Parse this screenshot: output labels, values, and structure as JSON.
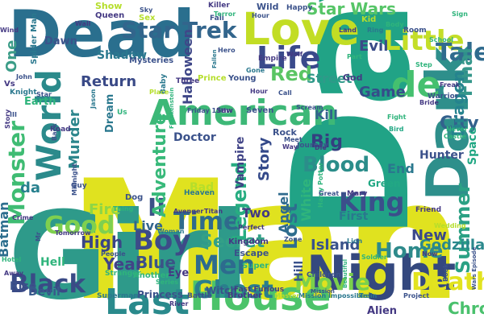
{
  "words": [
    {
      "text": "Man",
      "color": "#e0e21f"
    },
    {
      "text": "Day",
      "color": "#21a386"
    },
    {
      "text": "Dead",
      "color": "#2a6f8e"
    },
    {
      "text": "Girl",
      "color": "#2e9a8a"
    },
    {
      "text": "Night",
      "color": "#34487e"
    },
    {
      "text": "Dark",
      "color": "#2e8f8b"
    },
    {
      "text": "House",
      "color": "#4cc36a"
    },
    {
      "text": "Last",
      "color": "#2a8a8c"
    },
    {
      "text": "Love",
      "color": "#c2dd24"
    },
    {
      "text": "American",
      "color": "#3db877"
    },
    {
      "text": "Life",
      "color": "#3a4a8b"
    },
    {
      "text": "World",
      "color": "#2b8a8b"
    },
    {
      "text": "Boy",
      "color": "#3d4b88"
    },
    {
      "text": "Black",
      "color": "#3a4a86"
    },
    {
      "text": "Men",
      "color": "#2d6b8e"
    },
    {
      "text": "Ghost",
      "color": "#2a7f8c"
    },
    {
      "text": "Good",
      "color": "#7fd04f"
    },
    {
      "text": "Time",
      "color": "#2f6a8c"
    },
    {
      "text": "II",
      "color": "#3c5188"
    },
    {
      "text": "King",
      "color": "#3b4f8b"
    },
    {
      "text": "de",
      "color": "#45c06f"
    },
    {
      "text": "Little",
      "color": "#c4de28"
    },
    {
      "text": "Star Trek",
      "color": "#32658c"
    },
    {
      "text": "Monster",
      "color": "#3fbc73"
    },
    {
      "text": "Death",
      "color": "#e2e31f"
    },
    {
      "text": "Movie",
      "color": "#7ad04c"
    },
    {
      "text": "Tale",
      "color": "#306b8e"
    },
    {
      "text": "Red",
      "color": "#5ac564"
    },
    {
      "text": "Lost",
      "color": "#2e6d8e"
    },
    {
      "text": "Secret",
      "color": "#33a087"
    },
    {
      "text": "Blood",
      "color": "#2b8d8a"
    },
    {
      "text": "Legend",
      "color": "#27ad81"
    },
    {
      "text": "Adventure",
      "color": "#38b97a"
    },
    {
      "text": "Home",
      "color": "#2e8a8b"
    },
    {
      "text": "Return",
      "color": "#3a4a87"
    },
    {
      "text": "Story",
      "color": "#34498a"
    },
    {
      "text": "Star Wars",
      "color": "#56c567"
    },
    {
      "text": "Summer",
      "color": "#2aa184"
    },
    {
      "text": "City",
      "color": "#33618d"
    },
    {
      "text": "Big",
      "color": "#343f80"
    },
    {
      "text": "Blue",
      "color": "#3b5387"
    },
    {
      "text": "Year",
      "color": "#414487"
    },
    {
      "text": "High",
      "color": "#3a4586"
    },
    {
      "text": "Live",
      "color": "#32658d"
    },
    {
      "text": "Game",
      "color": "#354d8a"
    },
    {
      "text": "Final",
      "color": "#36978b"
    },
    {
      "text": "Evil",
      "color": "#3a4b88"
    },
    {
      "text": "Fire",
      "color": "#8ed646"
    },
    {
      "text": "Murder",
      "color": "#2c868c"
    },
    {
      "text": "Batman",
      "color": "#2d6e8e"
    },
    {
      "text": "One",
      "color": "#3c9d88"
    },
    {
      "text": "Island",
      "color": "#3a538a"
    },
    {
      "text": "Dragon",
      "color": "#25838e"
    },
    {
      "text": "Street",
      "color": "#2f9989"
    },
    {
      "text": "Angel",
      "color": "#2f6b8e"
    },
    {
      "text": "Kill",
      "color": "#33638d"
    },
    {
      "text": "Godzilla",
      "color": "#2a888c"
    },
    {
      "text": "New",
      "color": "#3a4889"
    },
    {
      "text": "White",
      "color": "#2fb47c"
    },
    {
      "text": "Hill",
      "color": "#3b528b"
    },
    {
      "text": "da",
      "color": "#27808e"
    },
    {
      "text": "Two",
      "color": "#443983"
    },
    {
      "text": "End",
      "color": "#2a788e"
    },
    {
      "text": "Hunter",
      "color": "#3b518b"
    },
    {
      "text": "Space",
      "color": "#22a884"
    },
    {
      "text": "Chronicle",
      "color": "#4ac16d"
    },
    {
      "text": "Halloween",
      "color": "#3f4788"
    },
    {
      "text": "Vampire",
      "color": "#414487"
    },
    {
      "text": "Shadow",
      "color": "#2a788e"
    },
    {
      "text": "Doctor",
      "color": "#3b528b"
    },
    {
      "text": "Hell",
      "color": "#2fb47c"
    },
    {
      "text": "Witch",
      "color": "#3a538a"
    },
    {
      "text": "Rise",
      "color": "#3b528b"
    },
    {
      "text": "Devil",
      "color": "#38598c"
    },
    {
      "text": "Dawn",
      "color": "#3b528b"
    },
    {
      "text": "Earth",
      "color": "#2fb47c"
    },
    {
      "text": "Eye",
      "color": "#443983"
    },
    {
      "text": "Alien",
      "color": "#443983"
    },
    {
      "text": "Bad",
      "color": "#b5de2b"
    },
    {
      "text": "Dream",
      "color": "#2a788e"
    },
    {
      "text": "Princess",
      "color": "#3b528b"
    },
    {
      "text": "Green",
      "color": "#22a884"
    },
    {
      "text": "Rock",
      "color": "#3b528b"
    },
    {
      "text": "Escape",
      "color": "#3b528b"
    },
    {
      "text": "First",
      "color": "#2a788e"
    },
    {
      "text": "Kingdom",
      "color": "#443983"
    },
    {
      "text": "Mysteries",
      "color": "#3b528b"
    },
    {
      "text": "God",
      "color": "#443983"
    },
    {
      "text": "Sex",
      "color": "#b5de2b"
    },
    {
      "text": "Show",
      "color": "#b5de2b"
    },
    {
      "text": "Three",
      "color": "#443983"
    },
    {
      "text": "Another",
      "color": "#2fb47c"
    },
    {
      "text": "Wild",
      "color": "#3b528b"
    },
    {
      "text": "Seven",
      "color": "#3b528b"
    },
    {
      "text": "Battle",
      "color": "#3b528b"
    },
    {
      "text": "Brother",
      "color": "#443983"
    },
    {
      "text": "Mary",
      "color": "#443983"
    },
    {
      "text": "Super",
      "color": "#2fb47c"
    },
    {
      "text": "Children",
      "color": "#3b528b"
    },
    {
      "text": "Kid",
      "color": "#b5de2b"
    },
    {
      "text": "Empire",
      "color": "#443983"
    },
    {
      "text": "Dog",
      "color": "#3b528b"
    },
    {
      "text": "Queen",
      "color": "#443983"
    },
    {
      "text": "Spider Man",
      "color": "#2a788e"
    },
    {
      "text": "Young",
      "color": "#3b528b"
    },
    {
      "text": "Fast Furious",
      "color": "#443983"
    },
    {
      "text": "Baby",
      "color": "#2a788e"
    },
    {
      "text": "Prince",
      "color": "#b5de2b"
    },
    {
      "text": "Journey",
      "color": "#3b528b"
    },
    {
      "text": "Superman",
      "color": "#2a788e"
    },
    {
      "text": "Friend",
      "color": "#443983"
    },
    {
      "text": "Happy",
      "color": "#3b528b"
    },
    {
      "text": "Knight",
      "color": "#2a788e"
    },
    {
      "text": "Stranger",
      "color": "#2fb47c"
    },
    {
      "text": "Heaven",
      "color": "#2a788e"
    },
    {
      "text": "Warrior",
      "color": "#3b528b"
    },
    {
      "text": "Mission Impossible",
      "color": "#2a788e"
    },
    {
      "text": "Wedding",
      "color": "#b5de2b"
    },
    {
      "text": "Project",
      "color": "#3b528b"
    },
    {
      "text": "Soldier",
      "color": "#2fb47c"
    },
    {
      "text": "Zone",
      "color": "#3b528b"
    },
    {
      "text": "Hero",
      "color": "#3b528b"
    },
    {
      "text": "Road",
      "color": "#443983"
    },
    {
      "text": "Killer",
      "color": "#443983"
    },
    {
      "text": "Harry Potter",
      "color": "#2fb47c"
    },
    {
      "text": "Castle",
      "color": "#2fb47c"
    },
    {
      "text": "Fall",
      "color": "#3b528b"
    },
    {
      "text": "Bird",
      "color": "#22a884"
    },
    {
      "text": "Vs",
      "color": "#443983"
    },
    {
      "text": "John",
      "color": "#3b528b"
    },
    {
      "text": "Avenger",
      "color": "#443983"
    },
    {
      "text": "Titan",
      "color": "#443983"
    },
    {
      "text": "Master",
      "color": "#b5de2b"
    },
    {
      "text": "Friday 13th",
      "color": "#3b528b"
    },
    {
      "text": "Saw",
      "color": "#443983"
    },
    {
      "text": "Crime",
      "color": "#443983"
    },
    {
      "text": "Hotel",
      "color": "#2fb47c"
    },
    {
      "text": "Away",
      "color": "#443983"
    },
    {
      "text": "Room",
      "color": "#3b528b"
    },
    {
      "text": "Wall",
      "color": "#443983"
    },
    {
      "text": "Sky",
      "color": "#3b528b"
    },
    {
      "text": "Gone",
      "color": "#2a788e"
    },
    {
      "text": "Way",
      "color": "#443983"
    },
    {
      "text": "Now",
      "color": "#443983"
    },
    {
      "text": "Part",
      "color": "#2fb47c"
    },
    {
      "text": "Book",
      "color": "#3b528b"
    },
    {
      "text": "Step",
      "color": "#2fb47c"
    },
    {
      "text": "Call",
      "color": "#3b528b"
    },
    {
      "text": "Bride",
      "color": "#443983"
    },
    {
      "text": "Lion",
      "color": "#2a788e"
    },
    {
      "text": "Beautiful",
      "color": "#2fb47c"
    },
    {
      "text": "Train",
      "color": "#2a788e"
    },
    {
      "text": "Scream",
      "color": "#3b528b"
    },
    {
      "text": "Wars Episode",
      "color": "#3b528b"
    },
    {
      "text": "Tomorrow",
      "color": "#443983"
    },
    {
      "text": "Perfect",
      "color": "#443983"
    },
    {
      "text": "Hour",
      "color": "#3b528b"
    },
    {
      "text": "Die",
      "color": "#443983"
    },
    {
      "text": "Terror",
      "color": "#2fb47c"
    },
    {
      "text": "Frankenstein",
      "color": "#2fb47c"
    },
    {
      "text": "Great",
      "color": "#3b528b"
    },
    {
      "text": "Wolf",
      "color": "#443983"
    },
    {
      "text": "Body",
      "color": "#2fb47c"
    },
    {
      "text": "River",
      "color": "#443983"
    },
    {
      "text": "Midnight",
      "color": "#3b528b"
    },
    {
      "text": "Place",
      "color": "#b5de2b"
    },
    {
      "text": "Series",
      "color": "#2fb47c"
    },
    {
      "text": "Woman",
      "color": "#2a788e"
    },
    {
      "text": "Thing",
      "color": "#2fb47c"
    },
    {
      "text": "Meet",
      "color": "#3b528b"
    },
    {
      "text": "Never",
      "color": "#2fb47c"
    },
    {
      "text": "Guy",
      "color": "#3b528b"
    },
    {
      "text": "Freak",
      "color": "#443983"
    },
    {
      "text": "Us",
      "color": "#2fb47c"
    },
    {
      "text": "Fallen",
      "color": "#2a788e"
    },
    {
      "text": "Jason",
      "color": "#2a788e"
    },
    {
      "text": "Mr",
      "color": "#3b528b"
    },
    {
      "text": "Back",
      "color": "#3b528b"
    },
    {
      "text": "Star",
      "color": "#3b528b"
    },
    {
      "text": "Wind",
      "color": "#443983"
    },
    {
      "text": "Story",
      "color": "#443983"
    },
    {
      "text": "School",
      "color": "#2fb47c"
    },
    {
      "text": "Hour",
      "color": "#443983"
    },
    {
      "text": "Mission",
      "color": "#3b528b"
    },
    {
      "text": "People",
      "color": "#3b528b"
    },
    {
      "text": "Sign",
      "color": "#2fb47c"
    },
    {
      "text": "Land",
      "color": "#443983"
    },
    {
      "text": "III",
      "color": "#3b528b"
    },
    {
      "text": "Fight",
      "color": "#2fb47c"
    },
    {
      "text": "Ring",
      "color": "#2a788e"
    }
  ]
}
